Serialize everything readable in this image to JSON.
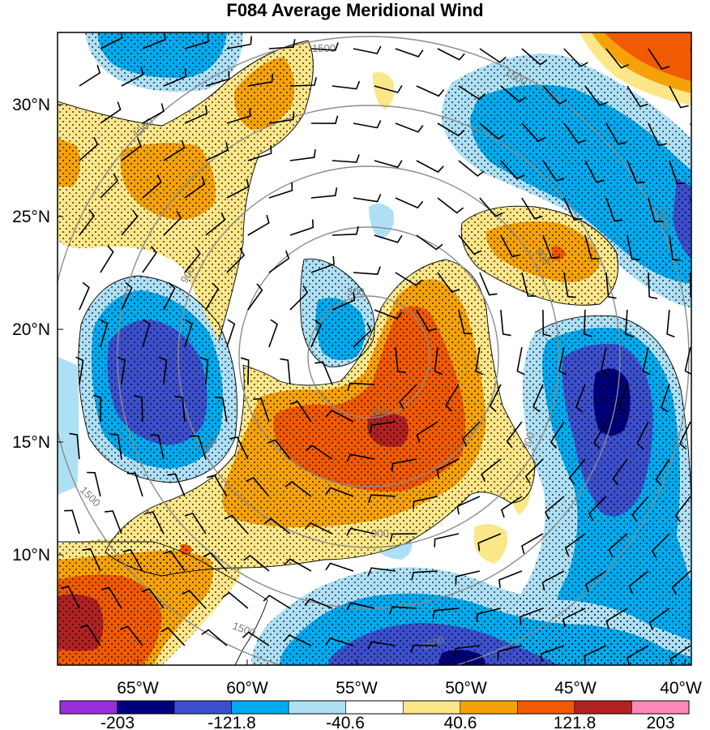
{
  "title": "F084 Average Meridional Wind",
  "latitudes": [
    {
      "label": "30°N",
      "value": 30
    },
    {
      "label": "25°N",
      "value": 25
    },
    {
      "label": "20°N",
      "value": 20
    },
    {
      "label": "15°N",
      "value": 15
    },
    {
      "label": "10°N",
      "value": 10
    }
  ],
  "longitudes": [
    {
      "label": "65°W",
      "value": -65
    },
    {
      "label": "60°W",
      "value": -60
    },
    {
      "label": "55°W",
      "value": -55
    },
    {
      "label": "50°W",
      "value": -50
    },
    {
      "label": "45°W",
      "value": -45
    },
    {
      "label": "40°W",
      "value": -40
    }
  ],
  "colorbar": {
    "colors": [
      "#9b30d9",
      "#00007a",
      "#3c4fcc",
      "#00aaee",
      "#aee0f5",
      "#ffffff",
      "#fbe78a",
      "#f5a20a",
      "#f05a00",
      "#b02222",
      "#ff88bb"
    ],
    "labels": [
      "-203",
      "-121.8",
      "-40.6",
      "40.6",
      "121.8",
      "203"
    ]
  },
  "ring_labels": [
    "1500",
    "1500",
    "1500",
    "1500",
    "900",
    "900",
    "900",
    "300",
    "300",
    "300",
    "1500",
    "900",
    "1500",
    "1500"
  ],
  "palette": {
    "strong_neg": "#00007a",
    "neg": "#3c4fcc",
    "mod_neg": "#00aaee",
    "weak_neg": "#aee0f5",
    "weak_pos": "#fbe78a",
    "mod_pos": "#f5a20a",
    "pos": "#f05a00",
    "strong_pos": "#b02222"
  }
}
